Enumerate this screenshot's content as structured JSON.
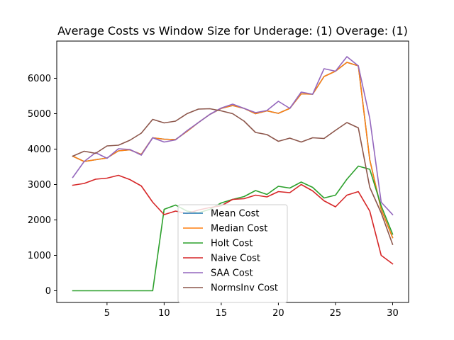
{
  "chart_data": {
    "type": "line",
    "title": "Average Costs vs Window Size for Underage: (1) Overage: (1)",
    "xlabel": "",
    "ylabel": "",
    "xlim": [
      0.6,
      31.4
    ],
    "ylim": [
      -330,
      7050
    ],
    "x_ticks": [
      5,
      10,
      15,
      20,
      25,
      30
    ],
    "y_ticks": [
      0,
      1000,
      2000,
      3000,
      4000,
      5000,
      6000
    ],
    "grid": false,
    "legend_position": "lower-center",
    "x": [
      2,
      3,
      4,
      5,
      6,
      7,
      8,
      9,
      10,
      11,
      12,
      13,
      14,
      15,
      16,
      17,
      18,
      19,
      20,
      21,
      22,
      23,
      24,
      25,
      26,
      27,
      28,
      29,
      30
    ],
    "series": [
      {
        "name": "Mean Cost",
        "color": "#1f77b4",
        "values": [
          3800,
          3650,
          3700,
          3750,
          3950,
          3980,
          3850,
          4320,
          4280,
          4270,
          4500,
          4750,
          4980,
          5150,
          5230,
          5150,
          5000,
          5080,
          5010,
          5150,
          5560,
          5550,
          6050,
          6200,
          6450,
          6350,
          3700,
          2300,
          1500
        ]
      },
      {
        "name": "Median Cost",
        "color": "#ff7f0e",
        "values": [
          3800,
          3650,
          3700,
          3750,
          3950,
          3980,
          3850,
          4320,
          4280,
          4270,
          4500,
          4750,
          4980,
          5150,
          5230,
          5150,
          5000,
          5080,
          5010,
          5150,
          5560,
          5550,
          6050,
          6200,
          6450,
          6350,
          3700,
          2300,
          1500
        ]
      },
      {
        "name": "Holt Cost",
        "color": "#2ca02c",
        "values": [
          0,
          0,
          0,
          0,
          0,
          0,
          0,
          0,
          2300,
          2420,
          2250,
          2200,
          2300,
          2480,
          2580,
          2660,
          2830,
          2720,
          2950,
          2900,
          3070,
          2920,
          2620,
          2700,
          3150,
          3520,
          3430,
          2400,
          1600
        ]
      },
      {
        "name": "Naive Cost",
        "color": "#d62728",
        "values": [
          2980,
          3030,
          3150,
          3180,
          3260,
          3140,
          2960,
          2500,
          2150,
          2250,
          2180,
          2280,
          2350,
          2400,
          2580,
          2600,
          2700,
          2650,
          2800,
          2770,
          3000,
          2820,
          2540,
          2370,
          2700,
          2800,
          2250,
          1000,
          760
        ]
      },
      {
        "name": "SAA Cost",
        "color": "#9467bd",
        "values": [
          3200,
          3650,
          3900,
          3740,
          4010,
          3990,
          3830,
          4320,
          4200,
          4260,
          4520,
          4750,
          4980,
          5160,
          5270,
          5150,
          5030,
          5090,
          5350,
          5150,
          5610,
          5550,
          6270,
          6200,
          6610,
          6350,
          4870,
          2500,
          2150
        ]
      },
      {
        "name": "NormsInv Cost",
        "color": "#8c564b",
        "values": [
          3800,
          3940,
          3880,
          4090,
          4110,
          4250,
          4450,
          4840,
          4740,
          4790,
          5000,
          5130,
          5140,
          5080,
          5000,
          4790,
          4470,
          4410,
          4220,
          4310,
          4200,
          4320,
          4300,
          4530,
          4750,
          4600,
          2920,
          2200,
          1310
        ]
      }
    ]
  }
}
